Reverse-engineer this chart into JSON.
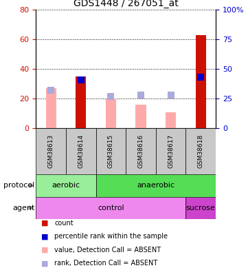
{
  "title": "GDS1448 / 267051_at",
  "samples": [
    "GSM38613",
    "GSM38614",
    "GSM38615",
    "GSM38616",
    "GSM38617",
    "GSM38618"
  ],
  "red_bars": [
    0,
    35,
    0,
    0,
    0,
    63
  ],
  "pink_bars": [
    27,
    0,
    20,
    16,
    11,
    0
  ],
  "blue_squares_right": [
    0,
    41,
    0,
    0,
    0,
    43
  ],
  "light_blue_squares_right": [
    32,
    0,
    27,
    28,
    28,
    0
  ],
  "ylim_left": [
    0,
    80
  ],
  "ylim_right": [
    0,
    100
  ],
  "yticks_left": [
    0,
    20,
    40,
    60,
    80
  ],
  "ytick_labels_left": [
    "0",
    "20",
    "40",
    "60",
    "80"
  ],
  "yticks_right": [
    0,
    25,
    50,
    75,
    100
  ],
  "ytick_labels_right": [
    "0",
    "25",
    "50",
    "75",
    "100%"
  ],
  "protocol_entries": [
    {
      "label": "aerobic",
      "start": 0,
      "end": 2,
      "color": "#99ee99"
    },
    {
      "label": "anaerobic",
      "start": 2,
      "end": 6,
      "color": "#55dd55"
    }
  ],
  "agent_entries": [
    {
      "label": "control",
      "start": 0,
      "end": 5,
      "color": "#ee88ee"
    },
    {
      "label": "sucrose",
      "start": 5,
      "end": 6,
      "color": "#cc44cc"
    }
  ],
  "bar_width": 0.35,
  "square_size": 50,
  "red_color": "#cc1100",
  "pink_color": "#ffaaaa",
  "blue_color": "#0000cc",
  "light_blue_color": "#aaaadd",
  "sample_box_color": "#c8c8c8",
  "legend_items": [
    {
      "color": "#cc1100",
      "label": "count"
    },
    {
      "color": "#0000cc",
      "label": "percentile rank within the sample"
    },
    {
      "color": "#ffaaaa",
      "label": "value, Detection Call = ABSENT"
    },
    {
      "color": "#aaaadd",
      "label": "rank, Detection Call = ABSENT"
    }
  ]
}
